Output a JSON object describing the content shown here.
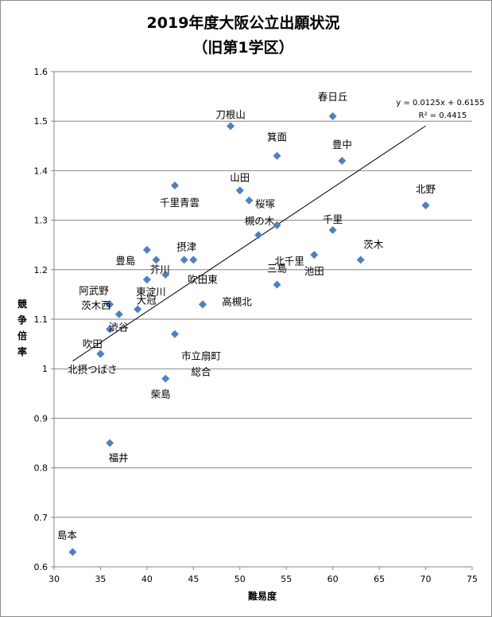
{
  "chart_data": {
    "type": "scatter",
    "title_line1": "2019年度大阪公立出願状況",
    "title_line2": "（旧第1学区）",
    "xlabel": "難易度",
    "ylabel": "競争倍率",
    "xlim": [
      30,
      75
    ],
    "ylim": [
      0.6,
      1.6
    ],
    "x_ticks": [
      "30",
      "35",
      "40",
      "45",
      "50",
      "55",
      "60",
      "65",
      "70",
      "75"
    ],
    "y_ticks": [
      "0.6",
      "0.7",
      "0.8",
      "0.9",
      "1",
      "1.1",
      "1.2",
      "1.3",
      "1.4",
      "1.5",
      "1.6"
    ],
    "grid": "horizontal",
    "marker_color": "#4f81bd",
    "trendline": {
      "slope": 0.0125,
      "intercept": 0.6155,
      "x_range": [
        32,
        70
      ],
      "equation": "y = 0.0125x + 0.6155",
      "r_squared": "R² = 0.4415"
    },
    "points": [
      {
        "label": "春日丘",
        "x": 60,
        "y": 1.51
      },
      {
        "label": "刀根山",
        "x": 49,
        "y": 1.49
      },
      {
        "label": "豊中",
        "x": 61,
        "y": 1.42
      },
      {
        "label": "箕面",
        "x": 54,
        "y": 1.43
      },
      {
        "label": "千里青雲",
        "x": 43,
        "y": 1.37
      },
      {
        "label": "山田",
        "x": 50,
        "y": 1.36
      },
      {
        "label": "桜塚",
        "x": 51,
        "y": 1.34
      },
      {
        "label": "北野",
        "x": 70,
        "y": 1.33
      },
      {
        "label": "槻の木",
        "x": 54,
        "y": 1.29
      },
      {
        "label": "千里",
        "x": 60,
        "y": 1.28
      },
      {
        "label": "北千里",
        "x": 52,
        "y": 1.27
      },
      {
        "label": "豊島",
        "x": 40,
        "y": 1.24
      },
      {
        "label": "摂津",
        "x": 44,
        "y": 1.22
      },
      {
        "label": "",
        "x": 45,
        "y": 1.22
      },
      {
        "label": "茨木",
        "x": 63,
        "y": 1.22
      },
      {
        "label": "",
        "x": 41,
        "y": 1.22
      },
      {
        "label": "池田",
        "x": 58,
        "y": 1.23
      },
      {
        "label": "芥川",
        "x": 42,
        "y": 1.19
      },
      {
        "label": "東淀川",
        "x": 40,
        "y": 1.18
      },
      {
        "label": "三島",
        "x": 54,
        "y": 1.17
      },
      {
        "label": "吹田東",
        "x": 46,
        "y": 1.13
      },
      {
        "label": "阿武野",
        "x": 36,
        "y": 1.13
      },
      {
        "label": "大冠",
        "x": 39,
        "y": 1.12
      },
      {
        "label": "茨木西",
        "x": 37,
        "y": 1.11
      },
      {
        "label": "高槻北",
        "x": 46,
        "y": 1.13
      },
      {
        "label": "渋谷",
        "x": 36,
        "y": 1.08
      },
      {
        "label": "市立扇町総合",
        "x": 43,
        "y": 1.07
      },
      {
        "label": "吹田",
        "x": 35,
        "y": 1.03
      },
      {
        "label": "北摂つばさ",
        "x": 35,
        "y": 1.03
      },
      {
        "label": "柴島",
        "x": 42,
        "y": 0.98
      },
      {
        "label": "福井",
        "x": 36,
        "y": 0.85
      },
      {
        "label": "島本",
        "x": 32,
        "y": 0.63
      }
    ]
  }
}
